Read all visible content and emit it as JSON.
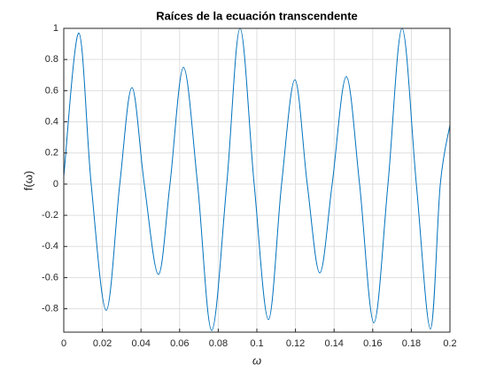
{
  "chart_data": {
    "type": "line",
    "title": "Raíces de la ecuación transcendente",
    "x_label": "ω",
    "y_label": "f(ω)",
    "xlim": [
      0,
      0.2
    ],
    "ylim": [
      -0.95,
      1
    ],
    "xticks": [
      0,
      0.02,
      0.04,
      0.06,
      0.08,
      0.1,
      0.12,
      0.14,
      0.16,
      0.18,
      0.2
    ],
    "yticks": [
      -0.8,
      -0.6,
      -0.4,
      -0.2,
      0,
      0.2,
      0.4,
      0.6,
      0.8,
      1
    ],
    "grid": true,
    "series": [
      {
        "color": "#0072bd",
        "x": [
          0,
          0.0078,
          0.0142,
          0.022,
          0.029,
          0.0353,
          0.0417,
          0.049,
          0.055,
          0.062,
          0.0693,
          0.0766,
          0.0844,
          0.0913,
          0.0986,
          0.106,
          0.1128,
          0.1197,
          0.1261,
          0.1326,
          0.139,
          0.1463,
          0.1532,
          0.1606,
          0.1679,
          0.1752,
          0.1826,
          0.1899,
          0.195,
          0.2
        ],
        "values": [
          0.05,
          0.97,
          0,
          -0.81,
          0,
          0.62,
          0,
          -0.58,
          0,
          0.75,
          0,
          -0.94,
          0,
          1.0,
          0,
          -0.87,
          0,
          0.67,
          0,
          -0.57,
          0,
          0.69,
          0,
          -0.89,
          0,
          1.0,
          0,
          -0.93,
          0,
          0.38
        ]
      }
    ]
  }
}
